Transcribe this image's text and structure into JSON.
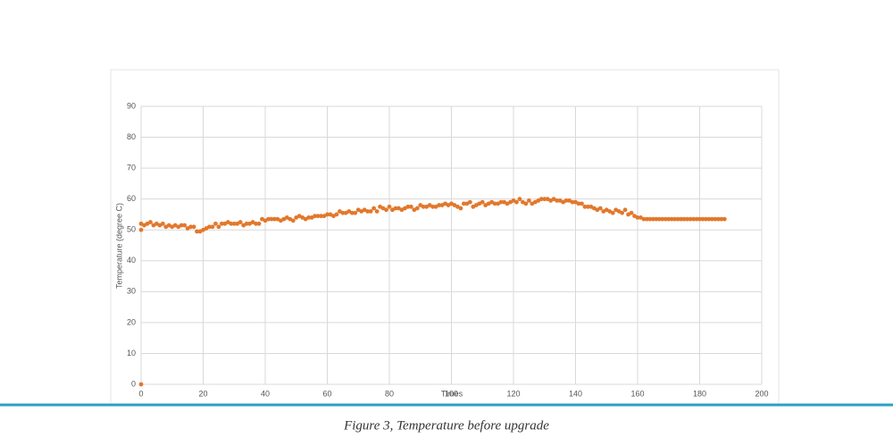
{
  "chart_data": {
    "type": "scatter",
    "x_label": "Times",
    "y_label": "Temperature  (degree C)",
    "caption": "Figure 3, Temperature before upgrade",
    "xlim": [
      0,
      200
    ],
    "xticks": [
      0,
      20,
      40,
      60,
      80,
      100,
      120,
      140,
      160,
      180,
      200
    ],
    "ylim": [
      0,
      90
    ],
    "yticks": [
      0,
      10,
      20,
      30,
      40,
      50,
      60,
      70,
      80,
      90
    ],
    "grid": true,
    "color": "#e2782c",
    "x": [
      0,
      0,
      0,
      1,
      2,
      3,
      4,
      5,
      6,
      7,
      8,
      9,
      10,
      11,
      12,
      13,
      14,
      15,
      16,
      17,
      18,
      19,
      20,
      21,
      22,
      23,
      24,
      25,
      26,
      27,
      28,
      29,
      30,
      31,
      32,
      33,
      34,
      35,
      36,
      37,
      38,
      39,
      40,
      41,
      42,
      43,
      44,
      45,
      46,
      47,
      48,
      49,
      50,
      51,
      52,
      53,
      54,
      55,
      56,
      57,
      58,
      59,
      60,
      61,
      62,
      63,
      64,
      65,
      66,
      67,
      68,
      69,
      70,
      71,
      72,
      73,
      74,
      75,
      76,
      77,
      78,
      79,
      80,
      81,
      82,
      83,
      84,
      85,
      86,
      87,
      88,
      89,
      90,
      91,
      92,
      93,
      94,
      95,
      96,
      97,
      98,
      99,
      100,
      101,
      102,
      103,
      104,
      105,
      106,
      107,
      108,
      109,
      110,
      111,
      112,
      113,
      114,
      115,
      116,
      117,
      118,
      119,
      120,
      121,
      122,
      123,
      124,
      125,
      126,
      127,
      128,
      129,
      130,
      131,
      132,
      133,
      134,
      135,
      136,
      137,
      138,
      139,
      140,
      141,
      142,
      143,
      144,
      145,
      146,
      147,
      148,
      149,
      150,
      151,
      152,
      153,
      154,
      155,
      156,
      157,
      158,
      159,
      160,
      161,
      162,
      163,
      164,
      165,
      166,
      167,
      168,
      169,
      170,
      171,
      172,
      173,
      174,
      175,
      176,
      177,
      178,
      179,
      180,
      181,
      182,
      183,
      184,
      185,
      186,
      187,
      188
    ],
    "values": [
      0,
      50,
      52,
      51.5,
      52,
      52.5,
      51.5,
      52,
      51.5,
      52,
      51,
      51.5,
      51,
      51.5,
      51,
      51.5,
      51.5,
      50.5,
      51,
      51,
      49.5,
      49.5,
      50,
      50.5,
      51,
      51,
      52,
      51,
      52,
      52,
      52.5,
      52,
      52,
      52,
      52.5,
      51.5,
      52,
      52,
      52.5,
      52,
      52,
      53.5,
      53,
      53.5,
      53.5,
      53.5,
      53.5,
      53,
      53.5,
      54,
      53.5,
      53,
      54,
      54.5,
      54,
      53.5,
      54,
      54,
      54.5,
      54.5,
      54.5,
      54.5,
      55,
      55,
      54.5,
      55,
      56,
      55.5,
      55.5,
      56,
      55.5,
      55.5,
      56.5,
      56,
      56.5,
      56,
      56,
      57,
      56,
      57.5,
      57,
      56.5,
      57.5,
      56.5,
      57,
      57,
      56.5,
      57,
      57.5,
      57.5,
      56.5,
      57,
      58,
      57.5,
      57.5,
      58,
      57.5,
      57.5,
      58,
      58,
      58.5,
      58,
      58.5,
      58,
      57.5,
      57,
      58.5,
      58.5,
      59,
      57.5,
      58,
      58.5,
      59,
      58,
      58.5,
      59,
      58.5,
      58.5,
      59,
      59,
      58.5,
      59,
      59.5,
      59,
      60,
      59,
      58.5,
      59.5,
      58.5,
      59,
      59.5,
      60,
      60,
      60,
      59.5,
      60,
      59.5,
      59.5,
      59,
      59.5,
      59.5,
      59,
      59,
      58.5,
      58.5,
      57.5,
      57.5,
      57.5,
      57,
      56.5,
      57,
      56,
      56.5,
      56,
      55.5,
      56.5,
      56,
      55.5,
      56.5,
      55,
      55.5,
      54.5,
      54,
      54,
      53.5,
      53.5,
      53.5,
      53.5,
      53.5,
      53.5,
      53.5,
      53.5,
      53.5,
      53.5,
      53.5,
      53.5,
      53.5,
      53.5,
      53.5,
      53.5,
      53.5,
      53.5,
      53.5,
      53.5,
      53.5,
      53.5,
      53.5,
      53.5,
      53.5,
      53.5,
      53.5
    ]
  }
}
